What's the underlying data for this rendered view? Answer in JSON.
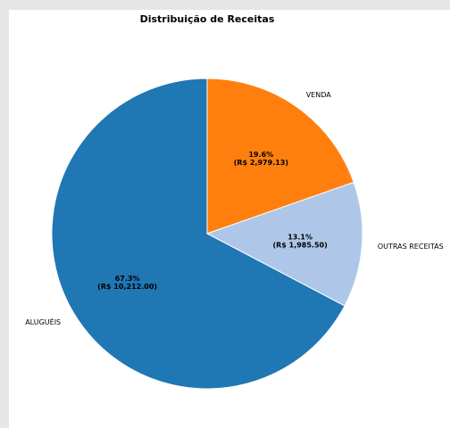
{
  "chart_data": {
    "type": "pie",
    "title": "Distribuição de Receitas",
    "start_angle_deg": 90,
    "direction": "clockwise",
    "slices": [
      {
        "label": "VENDA",
        "value": 2979.13,
        "percent": "19.6%",
        "amount": "(R$ 2,979.13)",
        "color": "#ff7f0e"
      },
      {
        "label": "OUTRAS RECEITAS",
        "value": 1985.5,
        "percent": "13.1%",
        "amount": "(R$ 1,985.50)",
        "color": "#aec7e8"
      },
      {
        "label": "ALUGUÉIS",
        "value": 10212.0,
        "percent": "67.3%",
        "amount": "(R$ 10,212.00)",
        "color": "#1f77b4"
      }
    ],
    "edge_color": "#ffffff"
  }
}
